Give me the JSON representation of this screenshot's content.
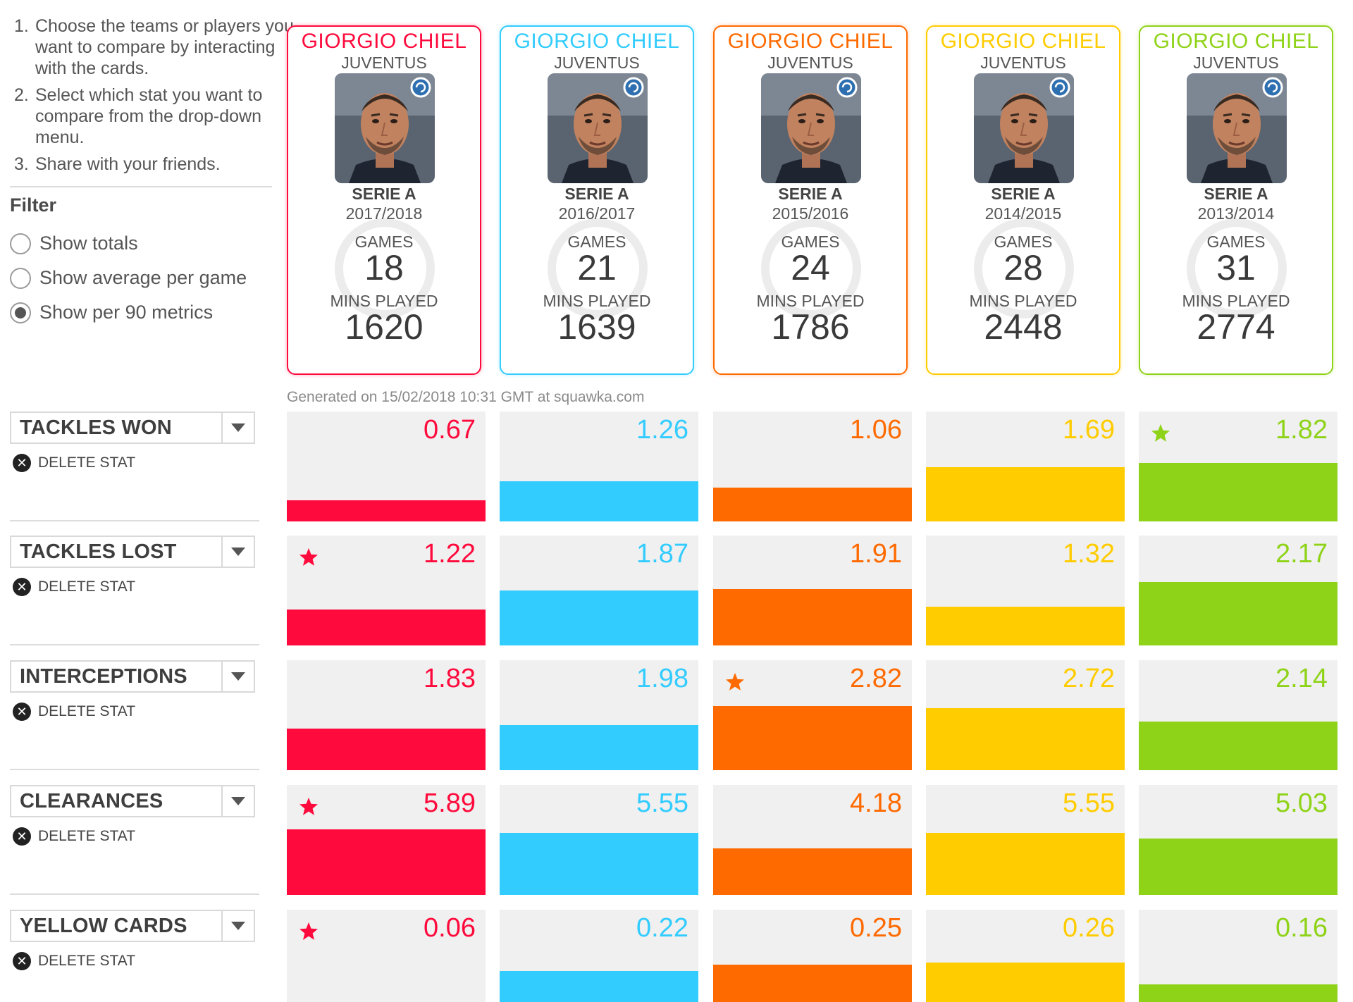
{
  "instructions": [
    "Choose the teams or players you want to compare by interacting with the cards.",
    "Select which stat you want to compare from the drop-down menu.",
    "Share with your friends."
  ],
  "filter": {
    "title": "Filter",
    "options": [
      {
        "label": "Show totals",
        "selected": false
      },
      {
        "label": "Show average per game",
        "selected": false
      },
      {
        "label": "Show per 90 metrics",
        "selected": true
      }
    ]
  },
  "labels": {
    "games": "GAMES",
    "mins": "MINS PLAYED",
    "delete": "DELETE STAT",
    "delete_icon": "close-circle-icon",
    "dropdown_icon": "chevron-down-icon",
    "star_icon": "star-icon"
  },
  "generated": "Generated on 15/02/2018 10:31 GMT at squawka.com",
  "cards": [
    {
      "name": "GIORGIO CHIEL",
      "team": "JUVENTUS",
      "league": "SERIE A",
      "season": "2017/2018",
      "games": "18",
      "mins": "1620",
      "color": "#ff0a3c"
    },
    {
      "name": "GIORGIO CHIEL",
      "team": "JUVENTUS",
      "league": "SERIE A",
      "season": "2016/2017",
      "games": "21",
      "mins": "1639",
      "color": "#33ccff"
    },
    {
      "name": "GIORGIO CHIEL",
      "team": "JUVENTUS",
      "league": "SERIE A",
      "season": "2015/2016",
      "games": "24",
      "mins": "1786",
      "color": "#ff6a00"
    },
    {
      "name": "GIORGIO CHIEL",
      "team": "JUVENTUS",
      "league": "SERIE A",
      "season": "2014/2015",
      "games": "28",
      "mins": "2448",
      "color": "#ffcc00"
    },
    {
      "name": "GIORGIO CHIEL",
      "team": "JUVENTUS",
      "league": "SERIE A",
      "season": "2013/2014",
      "games": "31",
      "mins": "2774",
      "color": "#8fd319"
    }
  ],
  "chart_data": {
    "type": "bar",
    "title": "",
    "metric_mode": "Show per 90 metrics",
    "categories": [
      "2017/2018",
      "2016/2017",
      "2015/2016",
      "2014/2015",
      "2013/2014"
    ],
    "series": [
      {
        "name": "TACKLES WON",
        "values": [
          "0.67",
          "1.26",
          "1.06",
          "1.69",
          "1.82"
        ],
        "starred": [
          false,
          false,
          false,
          false,
          true
        ]
      },
      {
        "name": "TACKLES LOST",
        "values": [
          "1.22",
          "1.87",
          "1.91",
          "1.32",
          "2.17"
        ],
        "starred": [
          true,
          false,
          false,
          false,
          false
        ]
      },
      {
        "name": "INTERCEPTIONS",
        "values": [
          "1.83",
          "1.98",
          "2.82",
          "2.72",
          "2.14"
        ],
        "starred": [
          false,
          false,
          true,
          false,
          false
        ]
      },
      {
        "name": "CLEARANCES",
        "values": [
          "5.89",
          "5.55",
          "4.18",
          "5.55",
          "5.03"
        ],
        "starred": [
          true,
          false,
          false,
          false,
          false
        ]
      },
      {
        "name": "YELLOW CARDS",
        "values": [
          "0.06",
          "0.22",
          "0.25",
          "0.26",
          "0.16"
        ],
        "starred": [
          true,
          false,
          false,
          false,
          false
        ]
      }
    ]
  }
}
